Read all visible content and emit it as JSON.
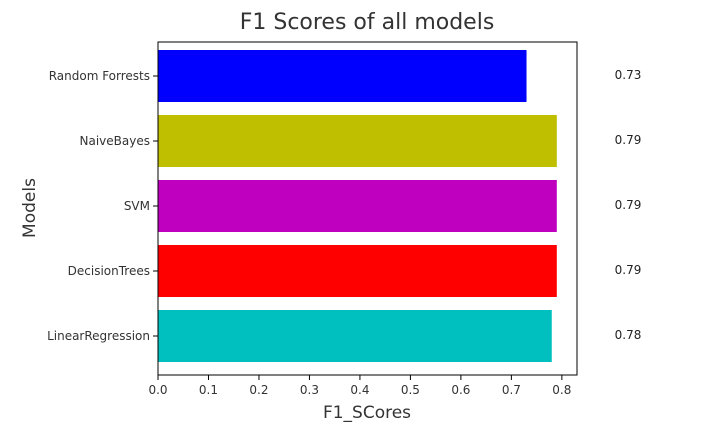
{
  "chart_data": {
    "type": "bar",
    "orientation": "horizontal",
    "title": "F1 Scores of all models",
    "xlabel": "F1_SCores",
    "ylabel": "Models",
    "categories": [
      "Random Forrests",
      "NaiveBayes",
      "SVM",
      "DecisionTrees",
      "LinearRegression"
    ],
    "values": [
      0.73,
      0.79,
      0.79,
      0.79,
      0.78
    ],
    "value_labels": [
      "0.73",
      "0.79",
      "0.79",
      "0.79",
      "0.78"
    ],
    "colors": [
      "#0000ff",
      "#bfbf00",
      "#bf00bf",
      "#ff0000",
      "#00bfbf"
    ],
    "xlim": [
      0,
      0.83
    ],
    "xticks": [
      0.0,
      0.1,
      0.2,
      0.3,
      0.4,
      0.5,
      0.6,
      0.7,
      0.8
    ],
    "xtick_labels": [
      "0.0",
      "0.1",
      "0.2",
      "0.3",
      "0.4",
      "0.5",
      "0.6",
      "0.7",
      "0.8"
    ],
    "grid": false,
    "legend": "none"
  }
}
